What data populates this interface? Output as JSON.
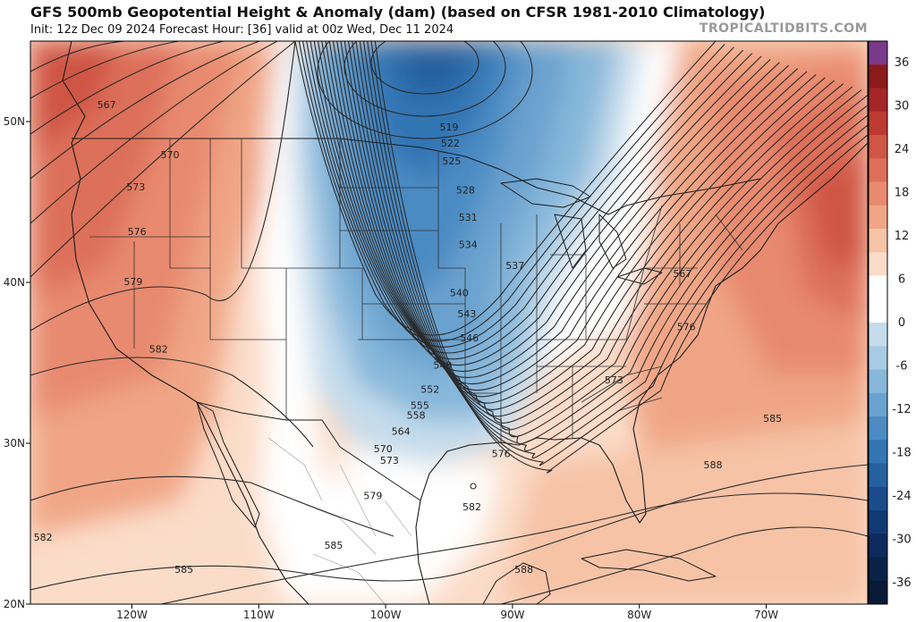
{
  "header": {
    "title": "GFS 500mb Geopotential Height & Anomaly (dam) (based on CFSR 1981-2010 Climatology)",
    "subtitle": "Init: 12z Dec 09 2024   Forecast Hour: [36]   valid at 00z Wed, Dec 11 2024",
    "brand": "TROPICALTIDBITS.COM"
  },
  "map": {
    "projection": "lat-lon",
    "lon_range": [
      -128,
      -62
    ],
    "lat_range": [
      20,
      55
    ],
    "lon_ticks": [
      {
        "value": -120,
        "label": "120W"
      },
      {
        "value": -110,
        "label": "110W"
      },
      {
        "value": -100,
        "label": "100W"
      },
      {
        "value": -90,
        "label": "90W"
      },
      {
        "value": -80,
        "label": "80W"
      },
      {
        "value": -70,
        "label": "70W"
      }
    ],
    "lat_ticks": [
      {
        "value": 20,
        "label": "20N"
      },
      {
        "value": 30,
        "label": "30N"
      },
      {
        "value": 40,
        "label": "40N"
      },
      {
        "value": 50,
        "label": "50N"
      }
    ],
    "colors": {
      "contour": "#2a2a2a",
      "border": "#1a1a1a",
      "state": "#333333"
    },
    "contour_labels": [
      {
        "text": "567",
        "lon": -122,
        "lat": 51
      },
      {
        "text": "570",
        "lon": -117,
        "lat": 47.9
      },
      {
        "text": "573",
        "lon": -119.7,
        "lat": 45.9
      },
      {
        "text": "576",
        "lon": -119.6,
        "lat": 43.1
      },
      {
        "text": "579",
        "lon": -119.9,
        "lat": 40.0
      },
      {
        "text": "582",
        "lon": -117.9,
        "lat": 35.8
      },
      {
        "text": "582",
        "lon": -127.0,
        "lat": 24.1
      },
      {
        "text": "585",
        "lon": -115.9,
        "lat": 22.1
      },
      {
        "text": "519",
        "lon": -95.0,
        "lat": 49.6
      },
      {
        "text": "522",
        "lon": -94.9,
        "lat": 48.6
      },
      {
        "text": "525",
        "lon": -94.8,
        "lat": 47.5
      },
      {
        "text": "528",
        "lon": -93.7,
        "lat": 45.7
      },
      {
        "text": "531",
        "lon": -93.5,
        "lat": 44.0
      },
      {
        "text": "534",
        "lon": -93.5,
        "lat": 42.3
      },
      {
        "text": "537",
        "lon": -89.8,
        "lat": 41.0
      },
      {
        "text": "540",
        "lon": -94.2,
        "lat": 39.3
      },
      {
        "text": "543",
        "lon": -93.6,
        "lat": 38.0
      },
      {
        "text": "546",
        "lon": -93.4,
        "lat": 36.5
      },
      {
        "text": "549",
        "lon": -95.5,
        "lat": 34.8
      },
      {
        "text": "552",
        "lon": -96.5,
        "lat": 33.3
      },
      {
        "text": "555",
        "lon": -97.3,
        "lat": 32.3
      },
      {
        "text": "558",
        "lon": -97.6,
        "lat": 31.7
      },
      {
        "text": "564",
        "lon": -98.8,
        "lat": 30.7
      },
      {
        "text": "570",
        "lon": -100.2,
        "lat": 29.6
      },
      {
        "text": "573",
        "lon": -99.7,
        "lat": 28.9
      },
      {
        "text": "576",
        "lon": -90.9,
        "lat": 29.3
      },
      {
        "text": "579",
        "lon": -101.0,
        "lat": 26.7
      },
      {
        "text": "582",
        "lon": -93.2,
        "lat": 26.0
      },
      {
        "text": "585",
        "lon": -104.1,
        "lat": 23.6
      },
      {
        "text": "588",
        "lon": -89.1,
        "lat": 22.1
      },
      {
        "text": "588",
        "lon": -74.2,
        "lat": 28.6
      },
      {
        "text": "585",
        "lon": -69.5,
        "lat": 31.5
      },
      {
        "text": "573",
        "lon": -82.0,
        "lat": 33.9
      },
      {
        "text": "576",
        "lon": -76.3,
        "lat": 37.2
      },
      {
        "text": "567",
        "lon": -76.6,
        "lat": 40.5
      }
    ]
  },
  "colorbar": {
    "ticks": [
      "36",
      "30",
      "24",
      "18",
      "12",
      "6",
      "0",
      "-6",
      "-12",
      "-18",
      "-24",
      "-30",
      "-36"
    ],
    "bins": [
      "#7a3a8a",
      "#8b1a1a",
      "#a52626",
      "#bd3a33",
      "#cf5545",
      "#dd6f5a",
      "#e88a70",
      "#f0a686",
      "#f6c3a6",
      "#fbdcc9",
      "#ffffff",
      "#ffffff",
      "#c5dcec",
      "#a7cbe4",
      "#87b7da",
      "#6aa2cf",
      "#4c8bc3",
      "#3374b3",
      "#2560a0",
      "#1a4c8c",
      "#123a74",
      "#0d2b5c",
      "#0a2148",
      "#081a38"
    ]
  }
}
